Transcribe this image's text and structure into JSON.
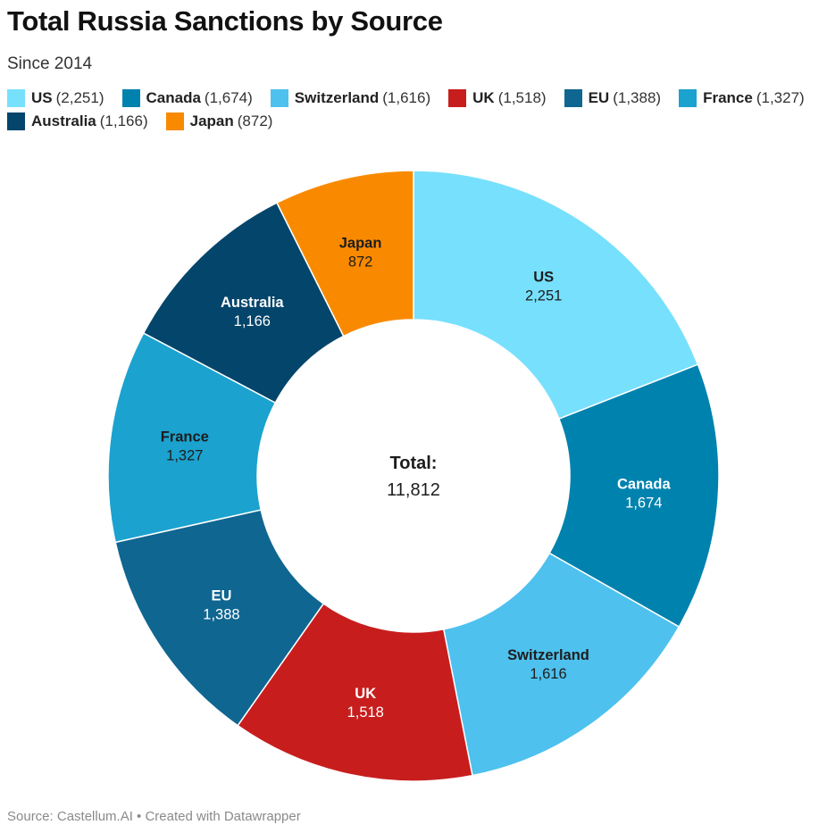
{
  "title": "Total Russia Sanctions by Source",
  "subtitle": "Since 2014",
  "footer": "Source: Castellum.AI • Created with Datawrapper",
  "chart_data": {
    "type": "pie",
    "title": "Total Russia Sanctions by Source",
    "subtitle": "Since 2014",
    "donut": true,
    "center_label": "Total:",
    "center_value": "11,812",
    "legend_position": "top",
    "slices": [
      {
        "name": "US",
        "value": 2251,
        "display": "2,251",
        "color": "#77e0fd",
        "label_color": "#1d1d1d"
      },
      {
        "name": "Canada",
        "value": 1674,
        "display": "1,674",
        "color": "#0082ae",
        "label_color": "#ffffff"
      },
      {
        "name": "Switzerland",
        "value": 1616,
        "display": "1,616",
        "color": "#4ec1ee",
        "label_color": "#1d1d1d"
      },
      {
        "name": "UK",
        "value": 1518,
        "display": "1,518",
        "color": "#c71e1d",
        "label_color": "#ffffff"
      },
      {
        "name": "EU",
        "value": 1388,
        "display": "1,388",
        "color": "#0f6691",
        "label_color": "#ffffff"
      },
      {
        "name": "France",
        "value": 1327,
        "display": "1,327",
        "color": "#1ba2cf",
        "label_color": "#1d1d1d"
      },
      {
        "name": "Australia",
        "value": 1166,
        "display": "1,166",
        "color": "#04456b",
        "label_color": "#ffffff"
      },
      {
        "name": "Japan",
        "value": 872,
        "display": "872",
        "color": "#f98a00",
        "label_color": "#1d1d1d"
      }
    ]
  }
}
